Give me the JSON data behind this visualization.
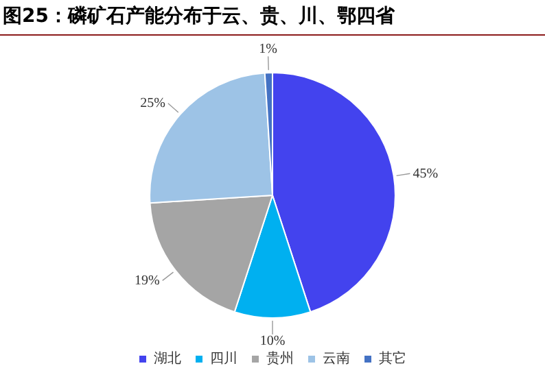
{
  "chart_data": {
    "type": "pie",
    "title": "图25：磷矿石产能分布于云、贵、川、鄂四省",
    "categories": [
      "湖北",
      "四川",
      "贵州",
      "云南",
      "其它"
    ],
    "values": [
      45,
      10,
      19,
      25,
      1
    ],
    "colors": [
      "#4343ee",
      "#00b0f0",
      "#a5a5a5",
      "#9dc3e6",
      "#4472c4"
    ],
    "value_labels": [
      "45%",
      "10%",
      "19%",
      "25%",
      "1%"
    ],
    "legend": "bottom"
  }
}
